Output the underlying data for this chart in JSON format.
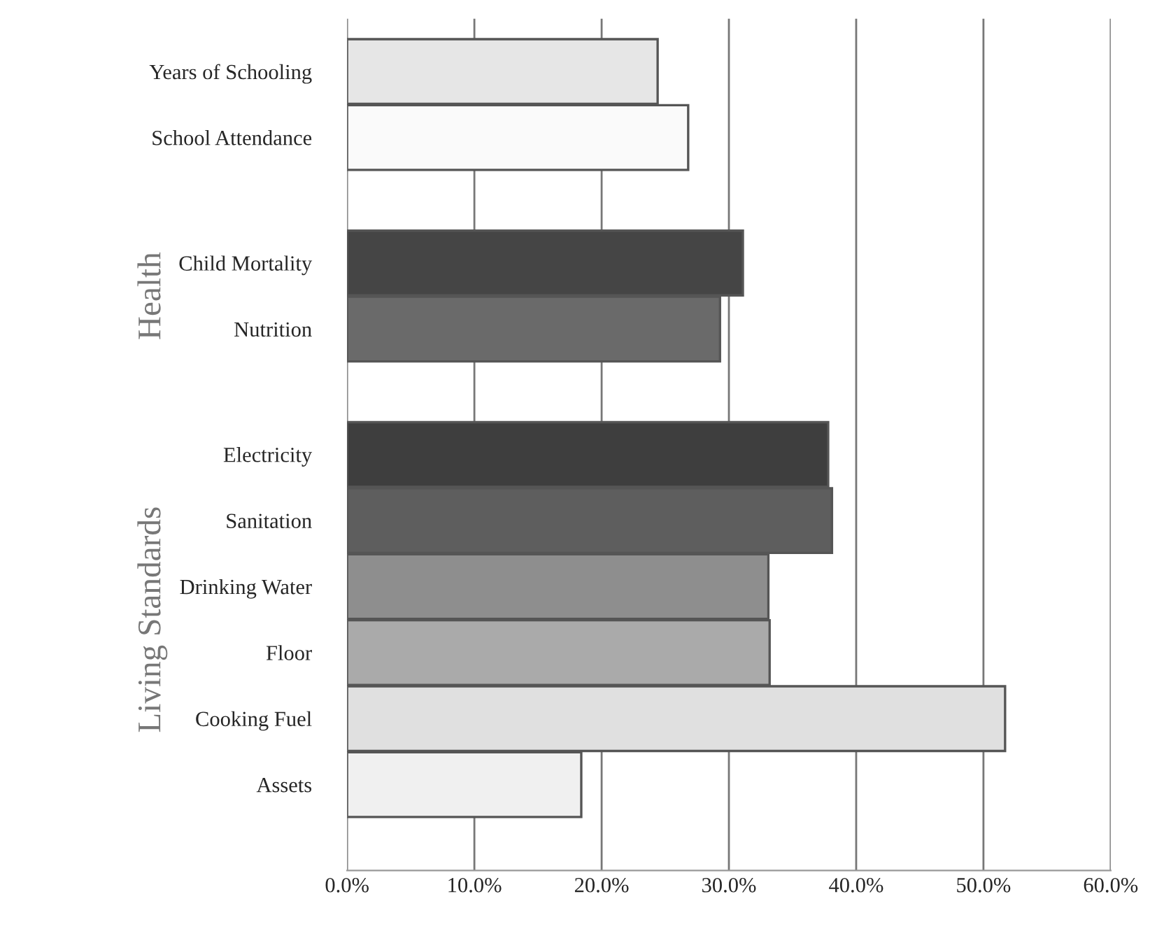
{
  "chart_data": {
    "type": "bar",
    "orientation": "horizontal",
    "categories": [
      "Years of Schooling",
      "School Attendance",
      "Child Mortality",
      "Nutrition",
      "Electricity",
      "Sanitation",
      "Drinking Water",
      "Floor",
      "Cooking Fuel",
      "Assets"
    ],
    "values": [
      24.4,
      26.8,
      31.1,
      29.3,
      37.8,
      38.1,
      33.1,
      33.2,
      51.7,
      18.4
    ],
    "colors": [
      "#e6e6e6",
      "#fafafa",
      "#454545",
      "#6a6a6a",
      "#3e3e3e",
      "#5e5e5e",
      "#8e8e8e",
      "#aaaaaa",
      "#e0e0e0",
      "#f0f0f0"
    ],
    "xlim": [
      0,
      60
    ],
    "xticks": [
      {
        "value": 0,
        "label": "0.0%"
      },
      {
        "value": 10,
        "label": "10.0%"
      },
      {
        "value": 20,
        "label": "20.0%"
      },
      {
        "value": 30,
        "label": "30.0%"
      },
      {
        "value": 40,
        "label": "40.0%"
      },
      {
        "value": 50,
        "label": "50.0%"
      },
      {
        "value": 60,
        "label": "60.0%"
      }
    ],
    "annotations": [
      "Health",
      "Living Standards"
    ],
    "grid": "x"
  }
}
